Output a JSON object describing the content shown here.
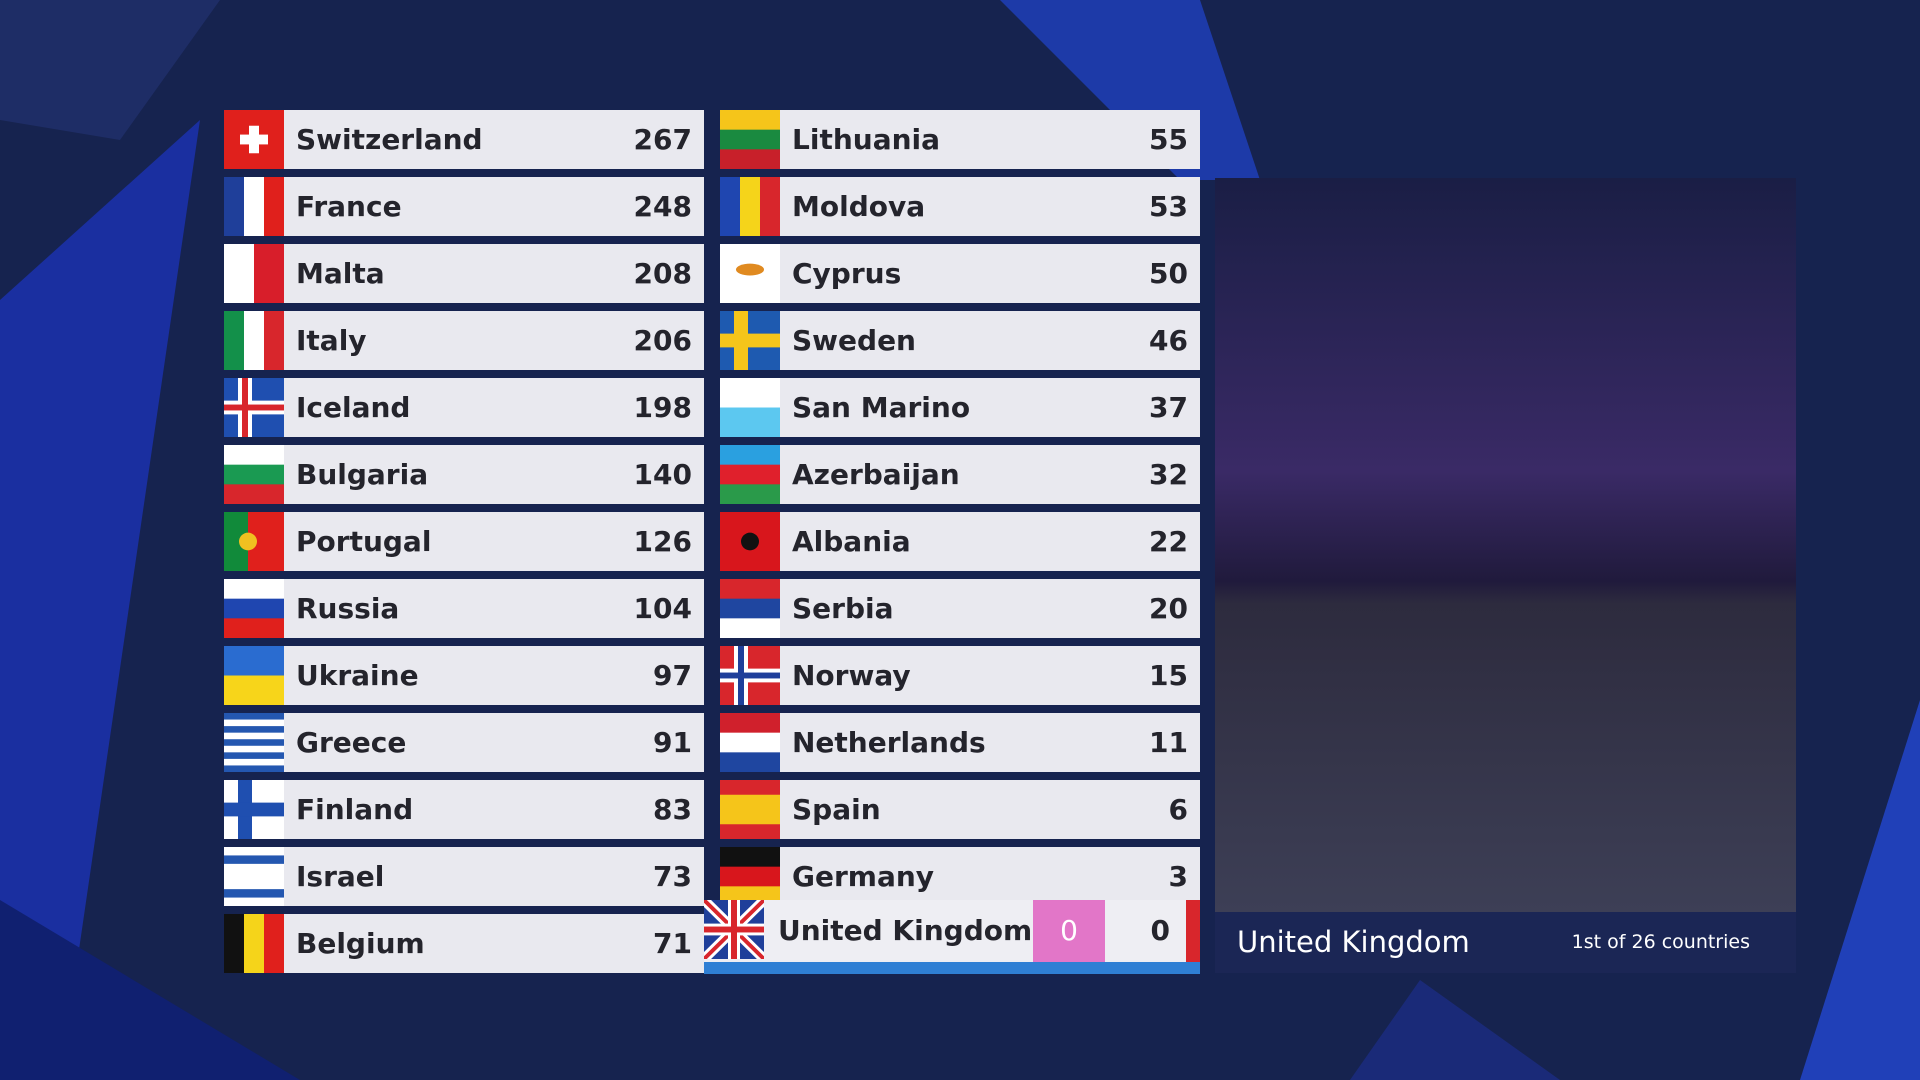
{
  "scoreboard": {
    "left": [
      {
        "country": "Switzerland",
        "points": 267
      },
      {
        "country": "France",
        "points": 248
      },
      {
        "country": "Malta",
        "points": 208
      },
      {
        "country": "Italy",
        "points": 206
      },
      {
        "country": "Iceland",
        "points": 198
      },
      {
        "country": "Bulgaria",
        "points": 140
      },
      {
        "country": "Portugal",
        "points": 126
      },
      {
        "country": "Russia",
        "points": 104
      },
      {
        "country": "Ukraine",
        "points": 97
      },
      {
        "country": "Greece",
        "points": 91
      },
      {
        "country": "Finland",
        "points": 83
      },
      {
        "country": "Israel",
        "points": 73
      },
      {
        "country": "Belgium",
        "points": 71
      }
    ],
    "right": [
      {
        "country": "Lithuania",
        "points": 55
      },
      {
        "country": "Moldova",
        "points": 53
      },
      {
        "country": "Cyprus",
        "points": 50
      },
      {
        "country": "Sweden",
        "points": 46
      },
      {
        "country": "San Marino",
        "points": 37
      },
      {
        "country": "Azerbaijan",
        "points": 32
      },
      {
        "country": "Albania",
        "points": 22
      },
      {
        "country": "Serbia",
        "points": 20
      },
      {
        "country": "Norway",
        "points": 15
      },
      {
        "country": "Netherlands",
        "points": 11
      },
      {
        "country": "Spain",
        "points": 6
      },
      {
        "country": "Germany",
        "points": 3
      }
    ]
  },
  "current": {
    "country": "United Kingdom",
    "awarded": 0,
    "total": 0
  },
  "video": {
    "caption": "United Kingdom",
    "progress": "1st of 26 countries"
  }
}
